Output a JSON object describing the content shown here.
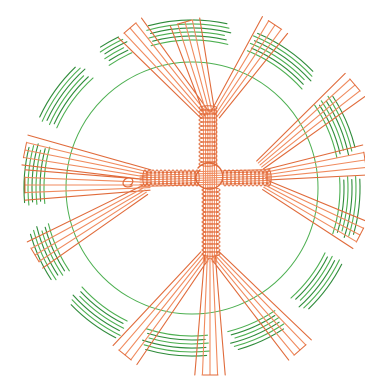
{
  "illustration": {
    "subject": "woven-wheel-cross",
    "colors": {
      "background": "#ffffff",
      "ring": "#4caf50",
      "ring_dark": "#2e8b3a",
      "strands": "#f08a5d",
      "strands_dark": "#e06a3a"
    }
  }
}
